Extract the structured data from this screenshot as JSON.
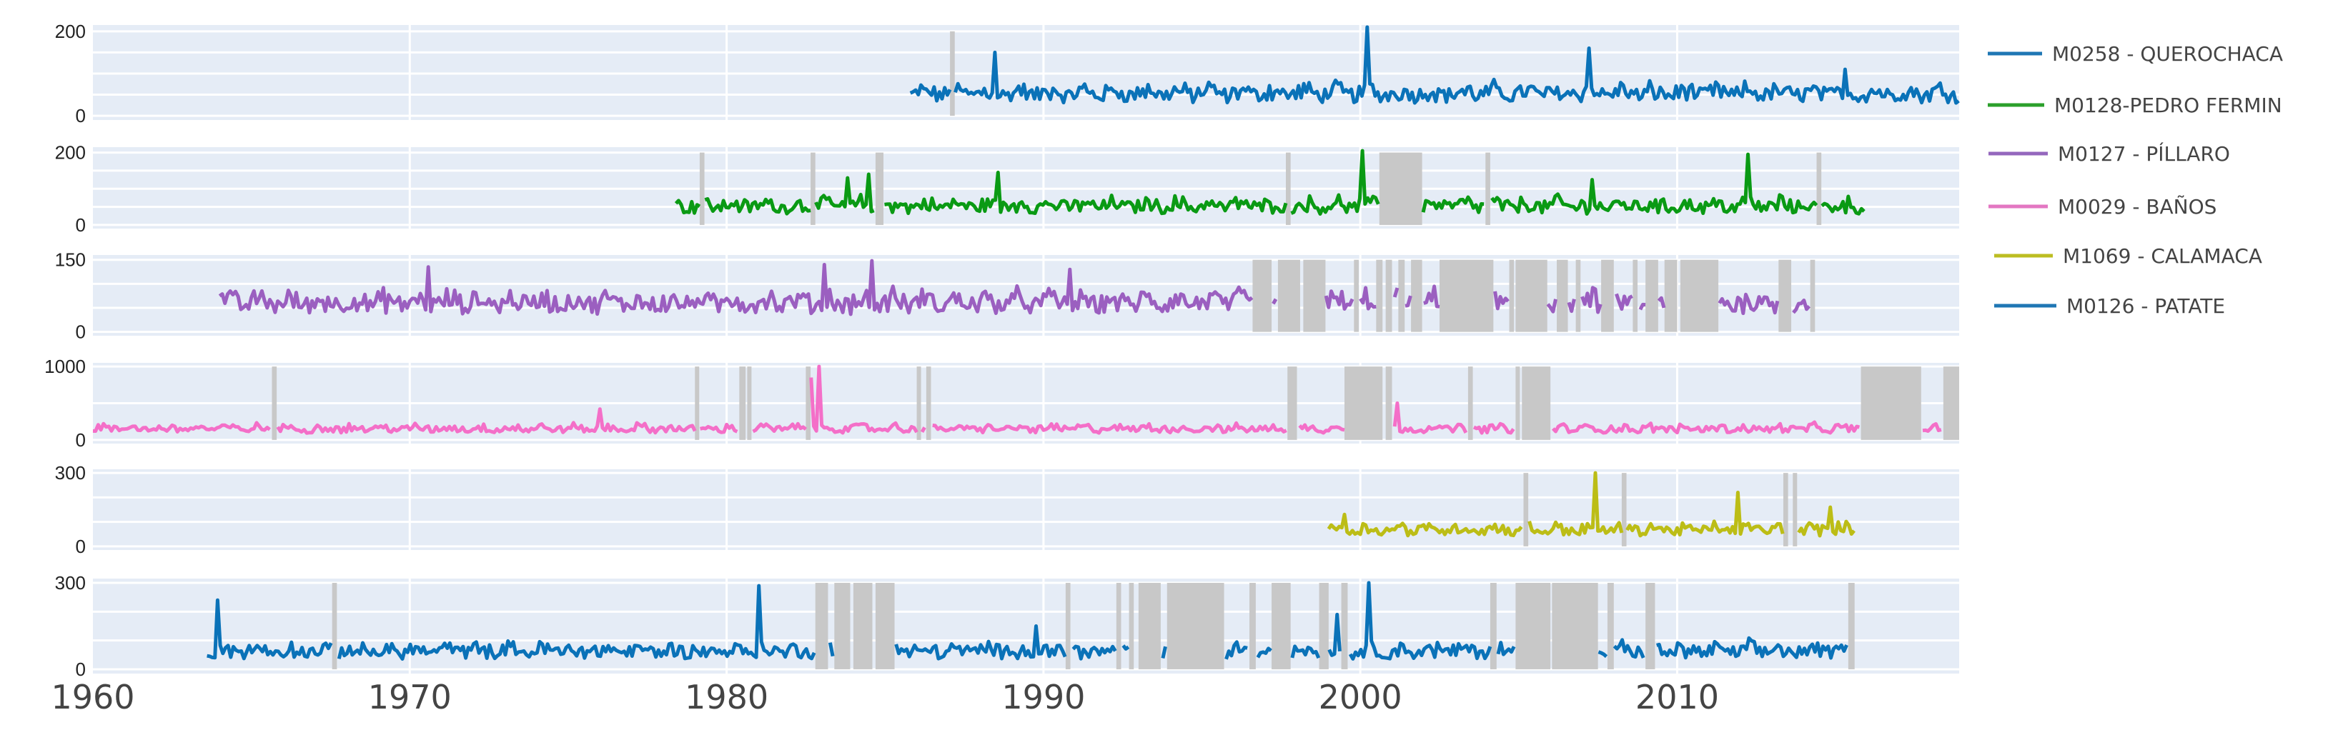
{
  "chart_data": {
    "type": "line",
    "title": "",
    "layout": "6 vertically stacked subplots sharing x-axis (time); grey vertical bands mark missing-data gaps",
    "xlabel": "",
    "x_range": [
      1960,
      2018.9
    ],
    "x_ticks": [
      1960,
      1970,
      1980,
      1990,
      2000,
      2010
    ],
    "legend_position": "right",
    "grid": true,
    "gap_color": "#c8c8c8",
    "panel_bg": "#e5ecf6",
    "series": [
      {
        "name": "M0258 - QUEROCHACA",
        "color": "#1f77b4",
        "line_color": "#0a72b8",
        "ylim": [
          -10,
          215
        ],
        "y_ticks": [
          0,
          200
        ],
        "y_gridlines": [
          0,
          50,
          100,
          150,
          200
        ],
        "start": 1985.8,
        "end": 2018.9,
        "typical_range": [
          10,
          90
        ],
        "peaks": [
          {
            "x": 1988.5,
            "y": 150
          },
          {
            "x": 2000.2,
            "y": 210
          },
          {
            "x": 2007.2,
            "y": 160
          },
          {
            "x": 2015.3,
            "y": 110
          }
        ],
        "gaps": [
          [
            1987.05,
            1987.2
          ]
        ]
      },
      {
        "name": "M0128-PEDRO FERMIN",
        "color": "#2ca02c",
        "line_color": "#0a9a14",
        "ylim": [
          -10,
          215
        ],
        "y_ticks": [
          0,
          200
        ],
        "y_gridlines": [
          0,
          50,
          100,
          150,
          200
        ],
        "start": 1978.4,
        "end": 2015.9,
        "typical_range": [
          10,
          90
        ],
        "peaks": [
          {
            "x": 1983.8,
            "y": 130
          },
          {
            "x": 1984.5,
            "y": 140
          },
          {
            "x": 1988.6,
            "y": 145
          },
          {
            "x": 2000.1,
            "y": 205
          },
          {
            "x": 2012.2,
            "y": 195
          },
          {
            "x": 2007.3,
            "y": 125
          }
        ],
        "gaps": [
          [
            1979.15,
            1979.3
          ],
          [
            1982.65,
            1982.8
          ],
          [
            1984.7,
            1984.95
          ],
          [
            1997.65,
            1997.8
          ],
          [
            2000.6,
            2001.95
          ],
          [
            2003.95,
            2004.1
          ],
          [
            2014.4,
            2014.55
          ]
        ]
      },
      {
        "name": "M0127 - PÍLLARO",
        "color": "#9467bd",
        "line_color": "#9b5fc0",
        "ylim": [
          -8,
          160
        ],
        "y_ticks": [
          0,
          150
        ],
        "y_gridlines": [
          0,
          50,
          100,
          150
        ],
        "start": 1964.0,
        "end": 2014.4,
        "typical_range": [
          15,
          100
        ],
        "peaks": [
          {
            "x": 1970.6,
            "y": 135
          },
          {
            "x": 1983.1,
            "y": 140
          },
          {
            "x": 1984.6,
            "y": 148
          },
          {
            "x": 1990.8,
            "y": 130
          }
        ],
        "gaps": [
          [
            1996.6,
            1997.2
          ],
          [
            1997.4,
            1998.1
          ],
          [
            1998.2,
            1998.9
          ],
          [
            1999.8,
            1999.95
          ],
          [
            2000.5,
            2000.7
          ],
          [
            2000.8,
            2001.0
          ],
          [
            2001.2,
            2001.4
          ],
          [
            2001.6,
            2001.95
          ],
          [
            2002.5,
            2004.2
          ],
          [
            2004.7,
            2004.85
          ],
          [
            2004.9,
            2005.9
          ],
          [
            2006.2,
            2006.55
          ],
          [
            2006.8,
            2006.95
          ],
          [
            2007.6,
            2008.0
          ],
          [
            2008.6,
            2008.75
          ],
          [
            2009.0,
            2009.4
          ],
          [
            2009.6,
            2010.0
          ],
          [
            2010.1,
            2011.3
          ],
          [
            2013.2,
            2013.6
          ],
          [
            2014.2,
            2014.35
          ]
        ]
      },
      {
        "name": "M0029 - BAÑOS",
        "color": "#e377c2",
        "line_color": "#f46fc8",
        "ylim": [
          -50,
          1050
        ],
        "y_ticks": [
          0,
          1000
        ],
        "y_gridlines": [
          0,
          500,
          1000
        ],
        "start": 1960.0,
        "end": 2018.9,
        "typical_range": [
          40,
          250
        ],
        "peaks": [
          {
            "x": 1982.7,
            "y": 850
          },
          {
            "x": 1982.9,
            "y": 1000
          },
          {
            "x": 2001.2,
            "y": 500
          },
          {
            "x": 1976.0,
            "y": 420
          }
        ],
        "gaps": [
          [
            1965.65,
            1965.8
          ],
          [
            1979.0,
            1979.1
          ],
          [
            1980.4,
            1980.6
          ],
          [
            1980.65,
            1980.75
          ],
          [
            1982.5,
            1982.65
          ],
          [
            1986.0,
            1986.1
          ],
          [
            1986.3,
            1986.45
          ],
          [
            1997.7,
            1998.0
          ],
          [
            1999.5,
            2000.7
          ],
          [
            2000.8,
            2001.0
          ],
          [
            2003.4,
            2003.55
          ],
          [
            2004.9,
            2005.0
          ],
          [
            2005.1,
            2006.0
          ],
          [
            2015.8,
            2017.7
          ],
          [
            2018.4,
            2018.9
          ]
        ]
      },
      {
        "name": "M1069 - CALAMACA",
        "color": "#bcbd22",
        "line_color": "#bcbd16",
        "ylim": [
          -15,
          315
        ],
        "y_ticks": [
          0,
          300
        ],
        "y_gridlines": [
          0,
          100,
          200,
          300
        ],
        "start": 1999.0,
        "end": 2015.6,
        "typical_range": [
          20,
          110
        ],
        "peaks": [
          {
            "x": 2007.4,
            "y": 300
          },
          {
            "x": 2011.9,
            "y": 220
          },
          {
            "x": 2014.8,
            "y": 160
          },
          {
            "x": 1999.5,
            "y": 130
          }
        ],
        "gaps": [
          [
            2005.15,
            2005.3
          ],
          [
            2008.25,
            2008.4
          ],
          [
            2013.35,
            2013.5
          ],
          [
            2013.65,
            2013.75
          ]
        ]
      },
      {
        "name": "M0126 - PATATE",
        "color": "#1f77b4",
        "line_color": "#0a72b8",
        "ylim": [
          -15,
          315
        ],
        "y_ticks": [
          0,
          300
        ],
        "y_gridlines": [
          0,
          100,
          200,
          300
        ],
        "start": 1963.6,
        "end": 2015.4,
        "typical_range": [
          10,
          110
        ],
        "peaks": [
          {
            "x": 1963.9,
            "y": 240
          },
          {
            "x": 1981.0,
            "y": 290
          },
          {
            "x": 2000.3,
            "y": 300
          },
          {
            "x": 1999.3,
            "y": 190
          },
          {
            "x": 1989.8,
            "y": 150
          }
        ],
        "gaps": [
          [
            1967.55,
            1967.7
          ],
          [
            1982.8,
            1983.2
          ],
          [
            1983.4,
            1983.9
          ],
          [
            1984.0,
            1984.6
          ],
          [
            1984.7,
            1985.3
          ],
          [
            1990.7,
            1990.85
          ],
          [
            1992.3,
            1992.45
          ],
          [
            1992.7,
            1992.85
          ],
          [
            1993.0,
            1993.7
          ],
          [
            1993.9,
            1995.7
          ],
          [
            1996.5,
            1996.7
          ],
          [
            1997.2,
            1997.8
          ],
          [
            1998.7,
            1999.0
          ],
          [
            1999.4,
            1999.6
          ],
          [
            2004.1,
            2004.3
          ],
          [
            2004.9,
            2006.0
          ],
          [
            2006.05,
            2007.5
          ],
          [
            2007.8,
            2008.0
          ],
          [
            2009.0,
            2009.3
          ],
          [
            2015.4,
            2015.6
          ]
        ]
      }
    ]
  },
  "legend": {
    "items": [
      {
        "label": "M0258 - QUEROCHACA",
        "color": "#1f77b4"
      },
      {
        "label": "M0128-PEDRO FERMIN",
        "color": "#2ca02c"
      },
      {
        "label": "M0127 - PÍLLARO",
        "color": "#9467bd"
      },
      {
        "label": "M0029 - BAÑOS",
        "color": "#e377c2"
      },
      {
        "label": "M1069 - CALAMACA",
        "color": "#bcbd22"
      },
      {
        "label": "M0126 - PATATE",
        "color": "#1f77b4"
      }
    ]
  }
}
